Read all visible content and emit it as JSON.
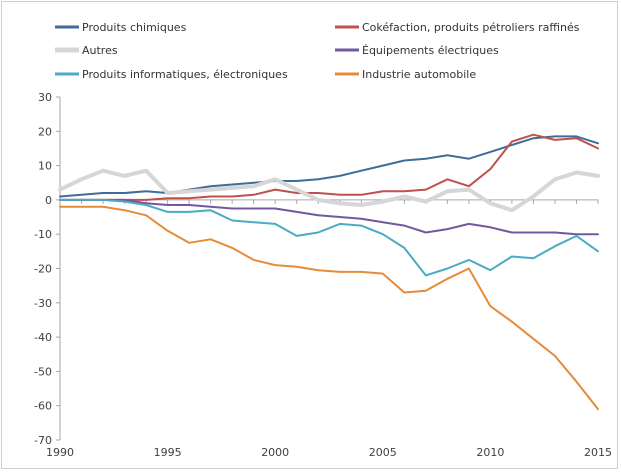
{
  "chart_data": {
    "type": "line",
    "title": "",
    "xlabel": "",
    "ylabel": "",
    "x": [
      1990,
      1991,
      1992,
      1993,
      1994,
      1995,
      1996,
      1997,
      1998,
      1999,
      2000,
      2001,
      2002,
      2003,
      2004,
      2005,
      2006,
      2007,
      2008,
      2009,
      2010,
      2011,
      2012,
      2013,
      2014,
      2015
    ],
    "xlim": [
      1990,
      2015
    ],
    "ylim": [
      -70,
      30
    ],
    "xticks": [
      "1990",
      "1995",
      "2000",
      "2005",
      "2010",
      "2015"
    ],
    "yticks": [
      "30",
      "20",
      "10",
      "0",
      "-10",
      "-20",
      "-30",
      "-40",
      "-50",
      "-60",
      "-70"
    ],
    "grid": false,
    "legend_position": "top",
    "series": [
      {
        "name": "Produits chimiques",
        "color": "#3f6d99",
        "values": [
          1,
          1.5,
          2,
          2,
          2.5,
          2,
          3,
          4,
          4.5,
          5,
          5.5,
          5.5,
          6,
          7,
          8.5,
          10,
          11.5,
          12,
          13,
          12,
          14,
          16,
          18,
          18.5,
          18.5,
          16.5
        ]
      },
      {
        "name": "Cokéfaction, produits pétroliers raffinés",
        "color": "#c0504d",
        "values": [
          0,
          0,
          0,
          0,
          0,
          0.5,
          0.5,
          1,
          1,
          1.5,
          3,
          2,
          2,
          1.5,
          1.5,
          2.5,
          2.5,
          3,
          6,
          4,
          9,
          17,
          19,
          17.5,
          18,
          15
        ]
      },
      {
        "name": "Autres",
        "color": "#d6d6d6",
        "values": [
          3,
          6,
          8.5,
          7,
          8.5,
          2,
          2.5,
          3,
          3.5,
          4,
          6,
          3,
          0,
          -1,
          -1.5,
          -0.5,
          1,
          -0.5,
          2.5,
          3,
          -1,
          -3,
          1,
          6,
          8,
          7
        ]
      },
      {
        "name": "Équipements électriques",
        "color": "#7158a1",
        "values": [
          0,
          0,
          0,
          0,
          -1,
          -1.5,
          -1.5,
          -2,
          -2.5,
          -2.5,
          -2.5,
          -3.5,
          -4.5,
          -5,
          -5.5,
          -6.5,
          -7.5,
          -9.5,
          -8.5,
          -7,
          -8,
          -9.5,
          -9.5,
          -9.5,
          -10,
          -10
        ]
      },
      {
        "name": "Produits informatiques, électroniques",
        "color": "#4aabc3",
        "values": [
          0,
          0,
          0,
          -0.5,
          -1.5,
          -3.5,
          -3.5,
          -3,
          -6,
          -6.5,
          -7,
          -10.5,
          -9.5,
          -7,
          -7.5,
          -10,
          -14,
          -22,
          -20,
          -17.5,
          -20.5,
          -16.5,
          -17,
          -13.5,
          -10.5,
          -15
        ]
      },
      {
        "name": "Industrie automobile",
        "color": "#e58b3a",
        "values": [
          -2,
          -2,
          -2,
          -3,
          -4.5,
          -9,
          -12.5,
          -11.5,
          -14,
          -17.5,
          -19,
          -19.5,
          -20.5,
          -21,
          -21,
          -21.5,
          -27,
          -26.5,
          -23,
          -20,
          -31,
          -35.5,
          -40.5,
          -45.5,
          -53,
          -61
        ]
      }
    ]
  }
}
